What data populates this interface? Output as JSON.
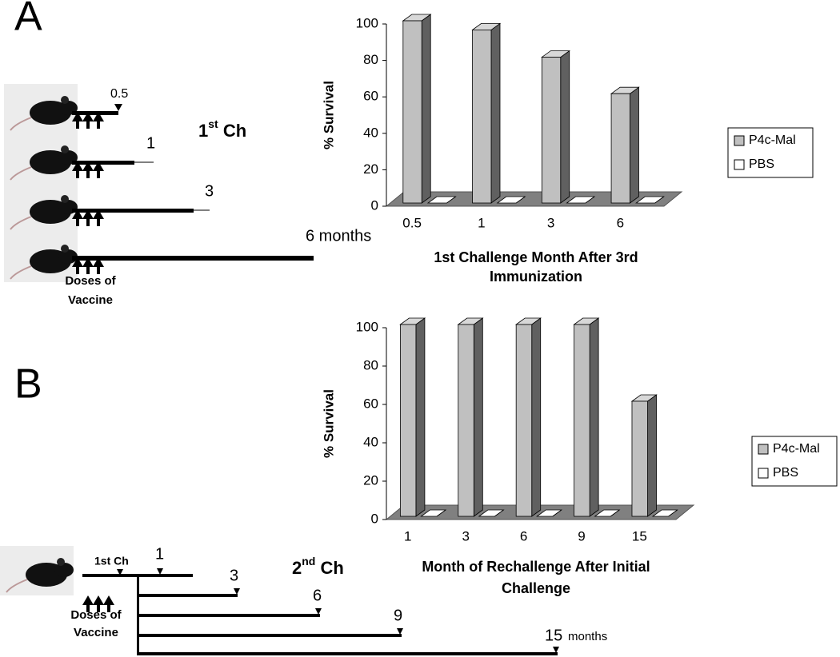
{
  "chart_data": [
    {
      "type": "bar",
      "ylabel": "% Survival",
      "xlabel": [
        "1st Challenge Month After 3rd",
        "Immunization"
      ],
      "categories": [
        "0.5",
        "1",
        "3",
        "6"
      ],
      "series": [
        {
          "name": "P4c-Mal",
          "color": "#c0c0c0",
          "values": [
            100,
            95,
            80,
            60
          ]
        },
        {
          "name": "PBS",
          "color": "#ffffff",
          "values": [
            0,
            0,
            0,
            0
          ]
        }
      ],
      "ylim": [
        0,
        100
      ],
      "yticks": [
        0,
        20,
        40,
        60,
        80,
        100
      ]
    },
    {
      "type": "bar",
      "ylabel": "% Survival",
      "xlabel": [
        "Month of Rechallenge After Initial",
        "Challenge"
      ],
      "categories": [
        "1",
        "3",
        "6",
        "9",
        "15"
      ],
      "series": [
        {
          "name": "P4c-Mal",
          "color": "#c0c0c0",
          "values": [
            100,
            100,
            100,
            100,
            60
          ]
        },
        {
          "name": "PBS",
          "color": "#ffffff",
          "values": [
            0,
            0,
            0,
            0,
            0
          ]
        }
      ],
      "ylim": [
        0,
        100
      ],
      "yticks": [
        0,
        20,
        40,
        60,
        80,
        100
      ]
    }
  ],
  "panels": [
    {
      "label": "A",
      "heading": [
        "1",
        "st",
        " Ch"
      ],
      "times": [
        "0.5",
        "1",
        "3",
        "6 months"
      ],
      "doses": [
        "Doses of",
        "Vaccine"
      ]
    },
    {
      "label": "B",
      "heading": [
        "2",
        "nd",
        " Ch"
      ],
      "first": "1st Ch",
      "times": [
        "1",
        "3",
        "6",
        "9",
        "15"
      ],
      "unit": "months",
      "doses": [
        "Doses of",
        "Vaccine"
      ]
    }
  ]
}
